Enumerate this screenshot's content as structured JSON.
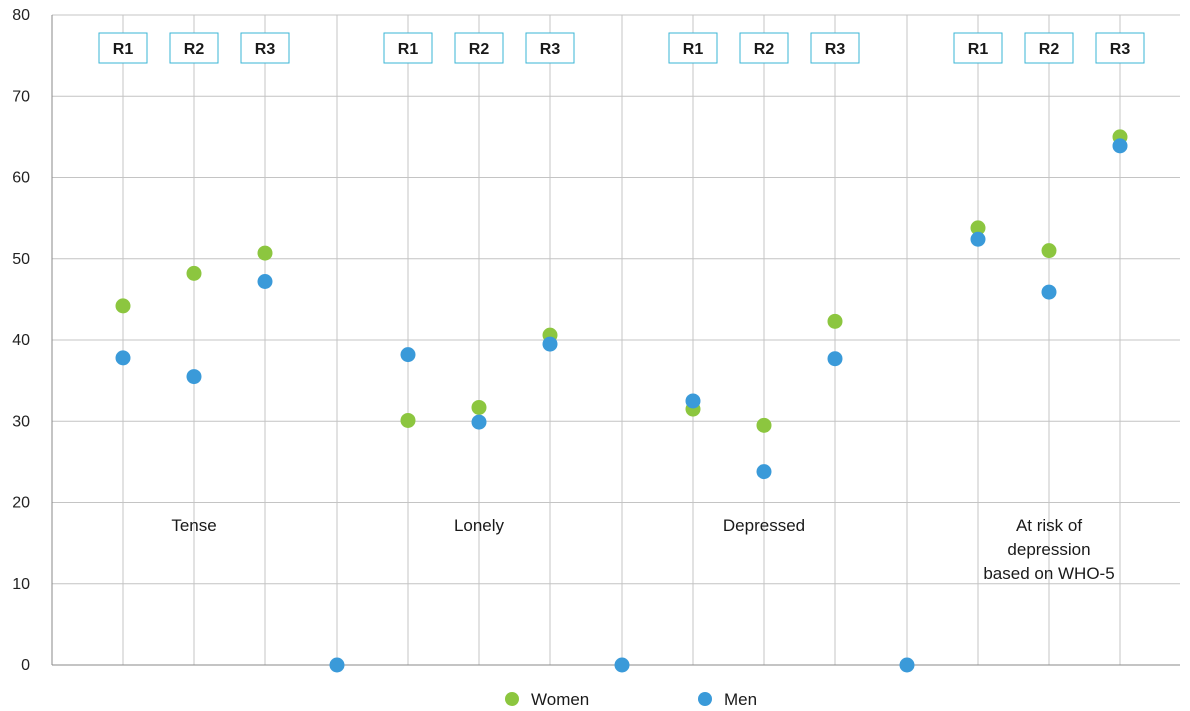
{
  "chart_data": {
    "type": "scatter",
    "y_axis": {
      "ylim": [
        0,
        80
      ],
      "ticks": [
        "0",
        "10",
        "20",
        "30",
        "40",
        "50",
        "60",
        "70",
        "80"
      ]
    },
    "grid": true,
    "groups": [
      {
        "label_lines": [
          "Tense"
        ],
        "rounds": [
          "R1",
          "R2",
          "R3"
        ]
      },
      {
        "label_lines": [
          "Lonely"
        ],
        "rounds": [
          "R1",
          "R2",
          "R3"
        ]
      },
      {
        "label_lines": [
          "Depressed"
        ],
        "rounds": [
          "R1",
          "R2",
          "R3"
        ]
      },
      {
        "label_lines": [
          "At risk of",
          "depression",
          "based on WHO-5"
        ],
        "rounds": [
          "R1",
          "R2",
          "R3"
        ]
      }
    ],
    "series": [
      {
        "name": "Women",
        "color": "#8cc63f",
        "values": [
          [
            44.2,
            48.2,
            50.7
          ],
          [
            30.1,
            31.7,
            40.6
          ],
          [
            31.5,
            29.5,
            42.3
          ],
          [
            53.8,
            51.0,
            65.0
          ]
        ]
      },
      {
        "name": "Men",
        "color": "#3a9ad9",
        "values": [
          [
            37.8,
            35.5,
            47.2
          ],
          [
            38.2,
            29.9,
            39.5
          ],
          [
            32.5,
            23.8,
            37.7
          ],
          [
            52.4,
            45.9,
            63.9
          ]
        ]
      }
    ],
    "separator_values": [
      0,
      0,
      0
    ],
    "separator_color": "#3a9ad9",
    "legend_position": "bottom-center"
  },
  "colors": {
    "grid": "#c4c4c4",
    "axis": "#8a8a8a",
    "round_box_border": "#3ab5d6"
  }
}
